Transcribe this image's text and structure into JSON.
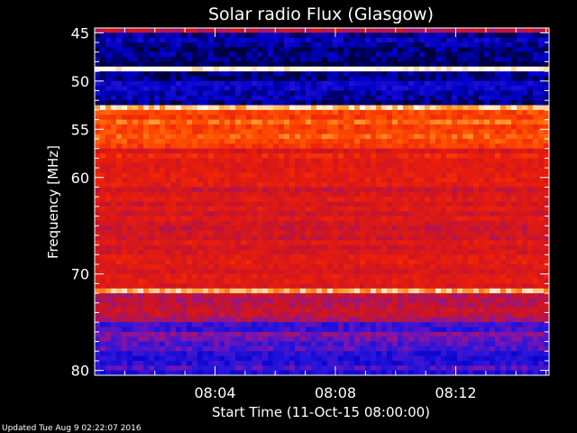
{
  "chart_data": {
    "type": "heatmap",
    "title": "Solar radio Flux (Glasgow)",
    "xlabel": "Start Time (11-Oct-15 08:00:00)",
    "ylabel": "Frequency [MHz]",
    "x_unit": "minutes",
    "xlim": [
      0,
      15.1
    ],
    "ylim": [
      44.5,
      80.5
    ],
    "x_ticks": [
      {
        "value": 4,
        "label": "08:04"
      },
      {
        "value": 8,
        "label": "08:08"
      },
      {
        "value": 12,
        "label": "08:12"
      }
    ],
    "y_ticks": [
      {
        "value": 45,
        "label": "45"
      },
      {
        "value": 50,
        "label": "50"
      },
      {
        "value": 55,
        "label": "55"
      },
      {
        "value": 60,
        "label": "60"
      },
      {
        "value": 70,
        "label": "70"
      },
      {
        "value": 80,
        "label": "80"
      }
    ],
    "y_minor_ticks": [
      46,
      47,
      48,
      49,
      51,
      52,
      53,
      54,
      56,
      57,
      58,
      59,
      61,
      62,
      63,
      64,
      65,
      66,
      67,
      68,
      69,
      71,
      72,
      73,
      74,
      75,
      76,
      77,
      78,
      79
    ],
    "x_minor_ticks": [
      1,
      2,
      3,
      5,
      6,
      7,
      9,
      10,
      11,
      13,
      14,
      15
    ],
    "intensity_bands": [
      {
        "f_start": 44.5,
        "f_end": 45.2,
        "level": 0.45
      },
      {
        "f_start": 45.2,
        "f_end": 48.5,
        "level": 0.05
      },
      {
        "f_start": 48.5,
        "f_end": 49.2,
        "level": 0.98
      },
      {
        "f_start": 49.2,
        "f_end": 52.5,
        "level": 0.08
      },
      {
        "f_start": 52.5,
        "f_end": 53.0,
        "level": 0.95
      },
      {
        "f_start": 53.0,
        "f_end": 57.0,
        "level": 0.78
      },
      {
        "f_start": 57.0,
        "f_end": 61.0,
        "level": 0.62
      },
      {
        "f_start": 61.0,
        "f_end": 67.0,
        "level": 0.55
      },
      {
        "f_start": 67.0,
        "f_end": 71.5,
        "level": 0.58
      },
      {
        "f_start": 71.5,
        "f_end": 72.0,
        "level": 0.95
      },
      {
        "f_start": 72.0,
        "f_end": 75.0,
        "level": 0.48
      },
      {
        "f_start": 75.0,
        "f_end": 78.0,
        "level": 0.3
      },
      {
        "f_start": 78.0,
        "f_end": 80.5,
        "level": 0.22
      }
    ]
  },
  "footer": {
    "updated": "Updated Tue Aug  9 02:22:07 2016"
  },
  "colors": {
    "background": "#000000",
    "axis": "#ffffff",
    "text": "#ffffff"
  }
}
